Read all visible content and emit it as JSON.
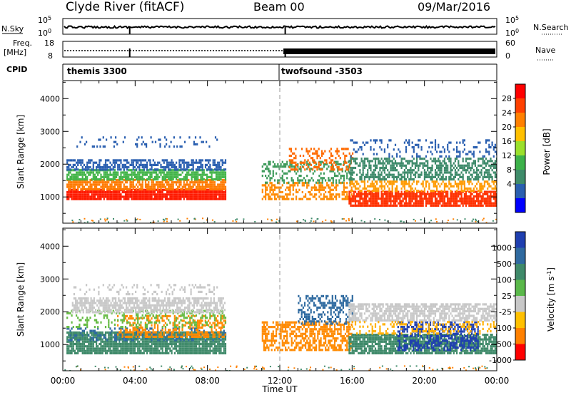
{
  "header": {
    "title": "Clyde River (fitACF)",
    "beam": "Beam 00",
    "date": "09/Mar/2016"
  },
  "noise_panel": {
    "left_label": "N.Sky",
    "left_ticks": [
      "10^5",
      "10^0"
    ],
    "right_label": "N.Search",
    "right_ticks": [
      "10^5",
      "10^0"
    ]
  },
  "freq_panel": {
    "left_label_line1": "Freq.",
    "left_label_line2": "[MHz]",
    "left_ticks": [
      "18",
      "8"
    ],
    "right_label": "Nave",
    "right_ticks": [
      "60",
      "0"
    ]
  },
  "cpid_panel": {
    "label": "CPID",
    "modes": [
      "themis 3300",
      "twofsound -3503"
    ]
  },
  "chart_data": [
    {
      "type": "heatmap",
      "name": "power",
      "ylabel": "Slant Range [km]",
      "yticks": [
        "1000",
        "2000",
        "3000",
        "4000"
      ],
      "ylim": [
        200,
        4550
      ],
      "colorbar_label": "Power [dB]",
      "colorbar_ticks": [
        "28",
        "24",
        "20",
        "16",
        "12",
        "8",
        "4"
      ],
      "colors": [
        "#ff0000",
        "#ff4000",
        "#ff8000",
        "#ffc000",
        "#9be02b",
        "#3db24a",
        "#3f8c6a",
        "#2a5fb0",
        "#0000ff"
      ],
      "bands": [
        {
          "t": [
            0.2,
            9.0
          ],
          "r": [
            900,
            1250
          ],
          "color": "#ff1a00",
          "density": 0.95
        },
        {
          "t": [
            0.2,
            9.0
          ],
          "r": [
            1200,
            1500
          ],
          "color": "#ff7a00",
          "density": 0.8
        },
        {
          "t": [
            0.2,
            9.0
          ],
          "r": [
            1500,
            1800
          ],
          "color": "#44b54a",
          "density": 0.75
        },
        {
          "t": [
            0.2,
            9.0
          ],
          "r": [
            1800,
            2150
          ],
          "color": "#2a5fb0",
          "density": 0.6
        },
        {
          "t": [
            0.5,
            8.5
          ],
          "r": [
            2500,
            2850
          ],
          "color": "#2a5fb0",
          "density": 0.15
        },
        {
          "t": [
            11.0,
            16.0
          ],
          "r": [
            900,
            1400
          ],
          "color": "#ff8a00",
          "density": 0.5
        },
        {
          "t": [
            11.0,
            16.0
          ],
          "r": [
            1400,
            2100
          ],
          "color": "#3d9a5a",
          "density": 0.4
        },
        {
          "t": [
            12.5,
            16.0
          ],
          "r": [
            1800,
            2500
          ],
          "color": "#ff6a00",
          "density": 0.35
        },
        {
          "t": [
            15.8,
            24.0
          ],
          "r": [
            700,
            1150
          ],
          "color": "#ff3000",
          "density": 0.85
        },
        {
          "t": [
            15.8,
            24.0
          ],
          "r": [
            1150,
            1500
          ],
          "color": "#ff9a00",
          "density": 0.5
        },
        {
          "t": [
            15.8,
            24.0
          ],
          "r": [
            1500,
            2200
          ],
          "color": "#3d8a6a",
          "density": 0.55
        },
        {
          "t": [
            15.8,
            24.0
          ],
          "r": [
            2200,
            2700
          ],
          "color": "#2a5fb0",
          "density": 0.2
        }
      ]
    },
    {
      "type": "heatmap",
      "name": "velocity",
      "ylabel": "Slant Range [km]",
      "yticks": [
        "1000",
        "2000",
        "3000",
        "4000"
      ],
      "ylim": [
        200,
        4550
      ],
      "colorbar_label": "Velocity [m s^-1]",
      "colorbar_ticks": [
        "1000",
        "500",
        "100",
        "25",
        "-25",
        "-100",
        "-500",
        "-1000"
      ],
      "colors": [
        "#1f3fb0",
        "#2f6aa0",
        "#3f8a6a",
        "#5ab84a",
        "#c8c8c8",
        "#ffc000",
        "#ff8000",
        "#ff0000"
      ],
      "bands": [
        {
          "t": [
            0.2,
            9.0
          ],
          "r": [
            700,
            1400
          ],
          "color": "#3f8a6a",
          "density": 0.9
        },
        {
          "t": [
            0.2,
            9.0
          ],
          "r": [
            1100,
            1500
          ],
          "color": "#2f6aa0",
          "density": 0.3
        },
        {
          "t": [
            3.0,
            9.0
          ],
          "r": [
            1200,
            1900
          ],
          "color": "#ff8a00",
          "density": 0.45
        },
        {
          "t": [
            0.2,
            9.0
          ],
          "r": [
            1500,
            2000
          ],
          "color": "#66bb44",
          "density": 0.25
        },
        {
          "t": [
            0.5,
            9.0
          ],
          "r": [
            1950,
            2400
          ],
          "color": "#c8c8c8",
          "density": 0.7
        },
        {
          "t": [
            0.5,
            8.5
          ],
          "r": [
            2500,
            2850
          ],
          "color": "#c8c8c8",
          "density": 0.2
        },
        {
          "t": [
            11.0,
            16.0
          ],
          "r": [
            800,
            1700
          ],
          "color": "#ff8a00",
          "density": 0.6
        },
        {
          "t": [
            13.0,
            16.0
          ],
          "r": [
            1600,
            2500
          ],
          "color": "#2f6aa0",
          "density": 0.4
        },
        {
          "t": [
            15.8,
            24.0
          ],
          "r": [
            700,
            1300
          ],
          "color": "#3f8a6a",
          "density": 0.85
        },
        {
          "t": [
            18.5,
            23.0
          ],
          "r": [
            800,
            1700
          ],
          "color": "#1f3fb0",
          "density": 0.5
        },
        {
          "t": [
            15.8,
            24.0
          ],
          "r": [
            1700,
            2200
          ],
          "color": "#c8c8c8",
          "density": 0.7
        },
        {
          "t": [
            15.8,
            24.0
          ],
          "r": [
            1300,
            1700
          ],
          "color": "#ffb000",
          "density": 0.25
        }
      ]
    }
  ],
  "x_axis": {
    "label": "Time UT",
    "ticks": [
      "00:00",
      "04:00",
      "08:00",
      "12:00",
      "16:00",
      "20:00",
      "00:00"
    ],
    "range_hours": [
      0,
      24
    ]
  }
}
